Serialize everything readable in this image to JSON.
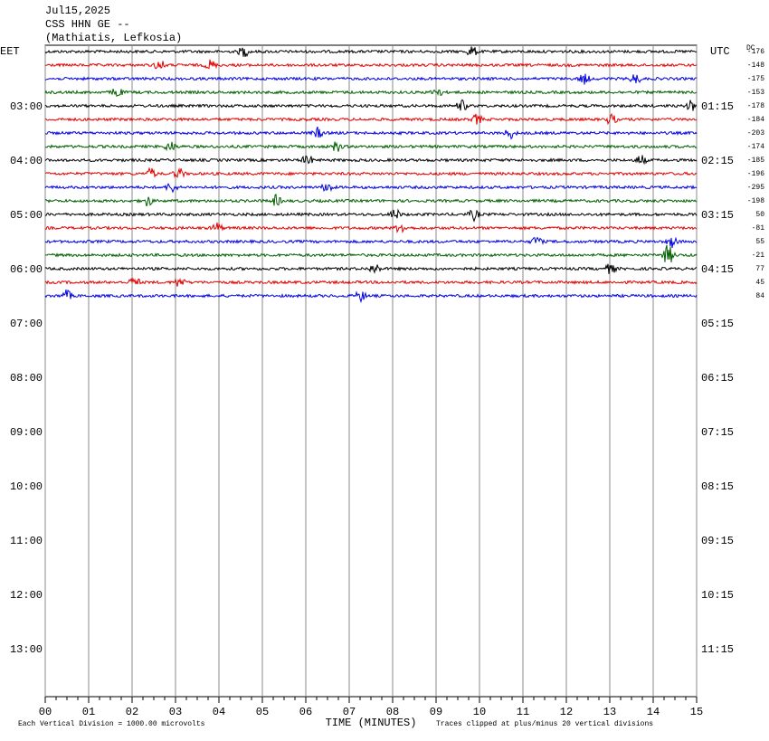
{
  "header": {
    "date": "Jul15,2025",
    "station": "CSS HHN GE --",
    "location": "(Mathiatis, Lefkosia)"
  },
  "left_axis": {
    "label": "EET",
    "ticks": [
      "03:00",
      "04:00",
      "05:00",
      "06:00",
      "07:00",
      "08:00",
      "09:00",
      "10:00",
      "11:00",
      "12:00",
      "13:00"
    ]
  },
  "right_axis": {
    "label": "UTC",
    "ticks": [
      "01:15",
      "02:15",
      "03:15",
      "04:15",
      "05:15",
      "06:15",
      "07:15",
      "08:15",
      "09:15",
      "10:15",
      "11:15"
    ]
  },
  "dc_offsets": {
    "label": "DC",
    "values": [
      -176,
      -148,
      -175,
      -153,
      -178,
      -184,
      -203,
      -174,
      -185,
      -196,
      -295,
      -198,
      50,
      -81,
      55,
      -21,
      77,
      45,
      84
    ]
  },
  "x_axis": {
    "label": "TIME (MINUTES)",
    "ticks": [
      "00",
      "01",
      "02",
      "03",
      "04",
      "05",
      "06",
      "07",
      "08",
      "09",
      "10",
      "11",
      "12",
      "13",
      "14",
      "15"
    ]
  },
  "footer": {
    "left": "Each Vertical Division = 1000.00 microvolts",
    "right": "Traces clipped at plus/minus 20 vertical divisions"
  },
  "trace_colors": [
    "#000000",
    "#e00000",
    "#0000e0",
    "#006000"
  ]
}
